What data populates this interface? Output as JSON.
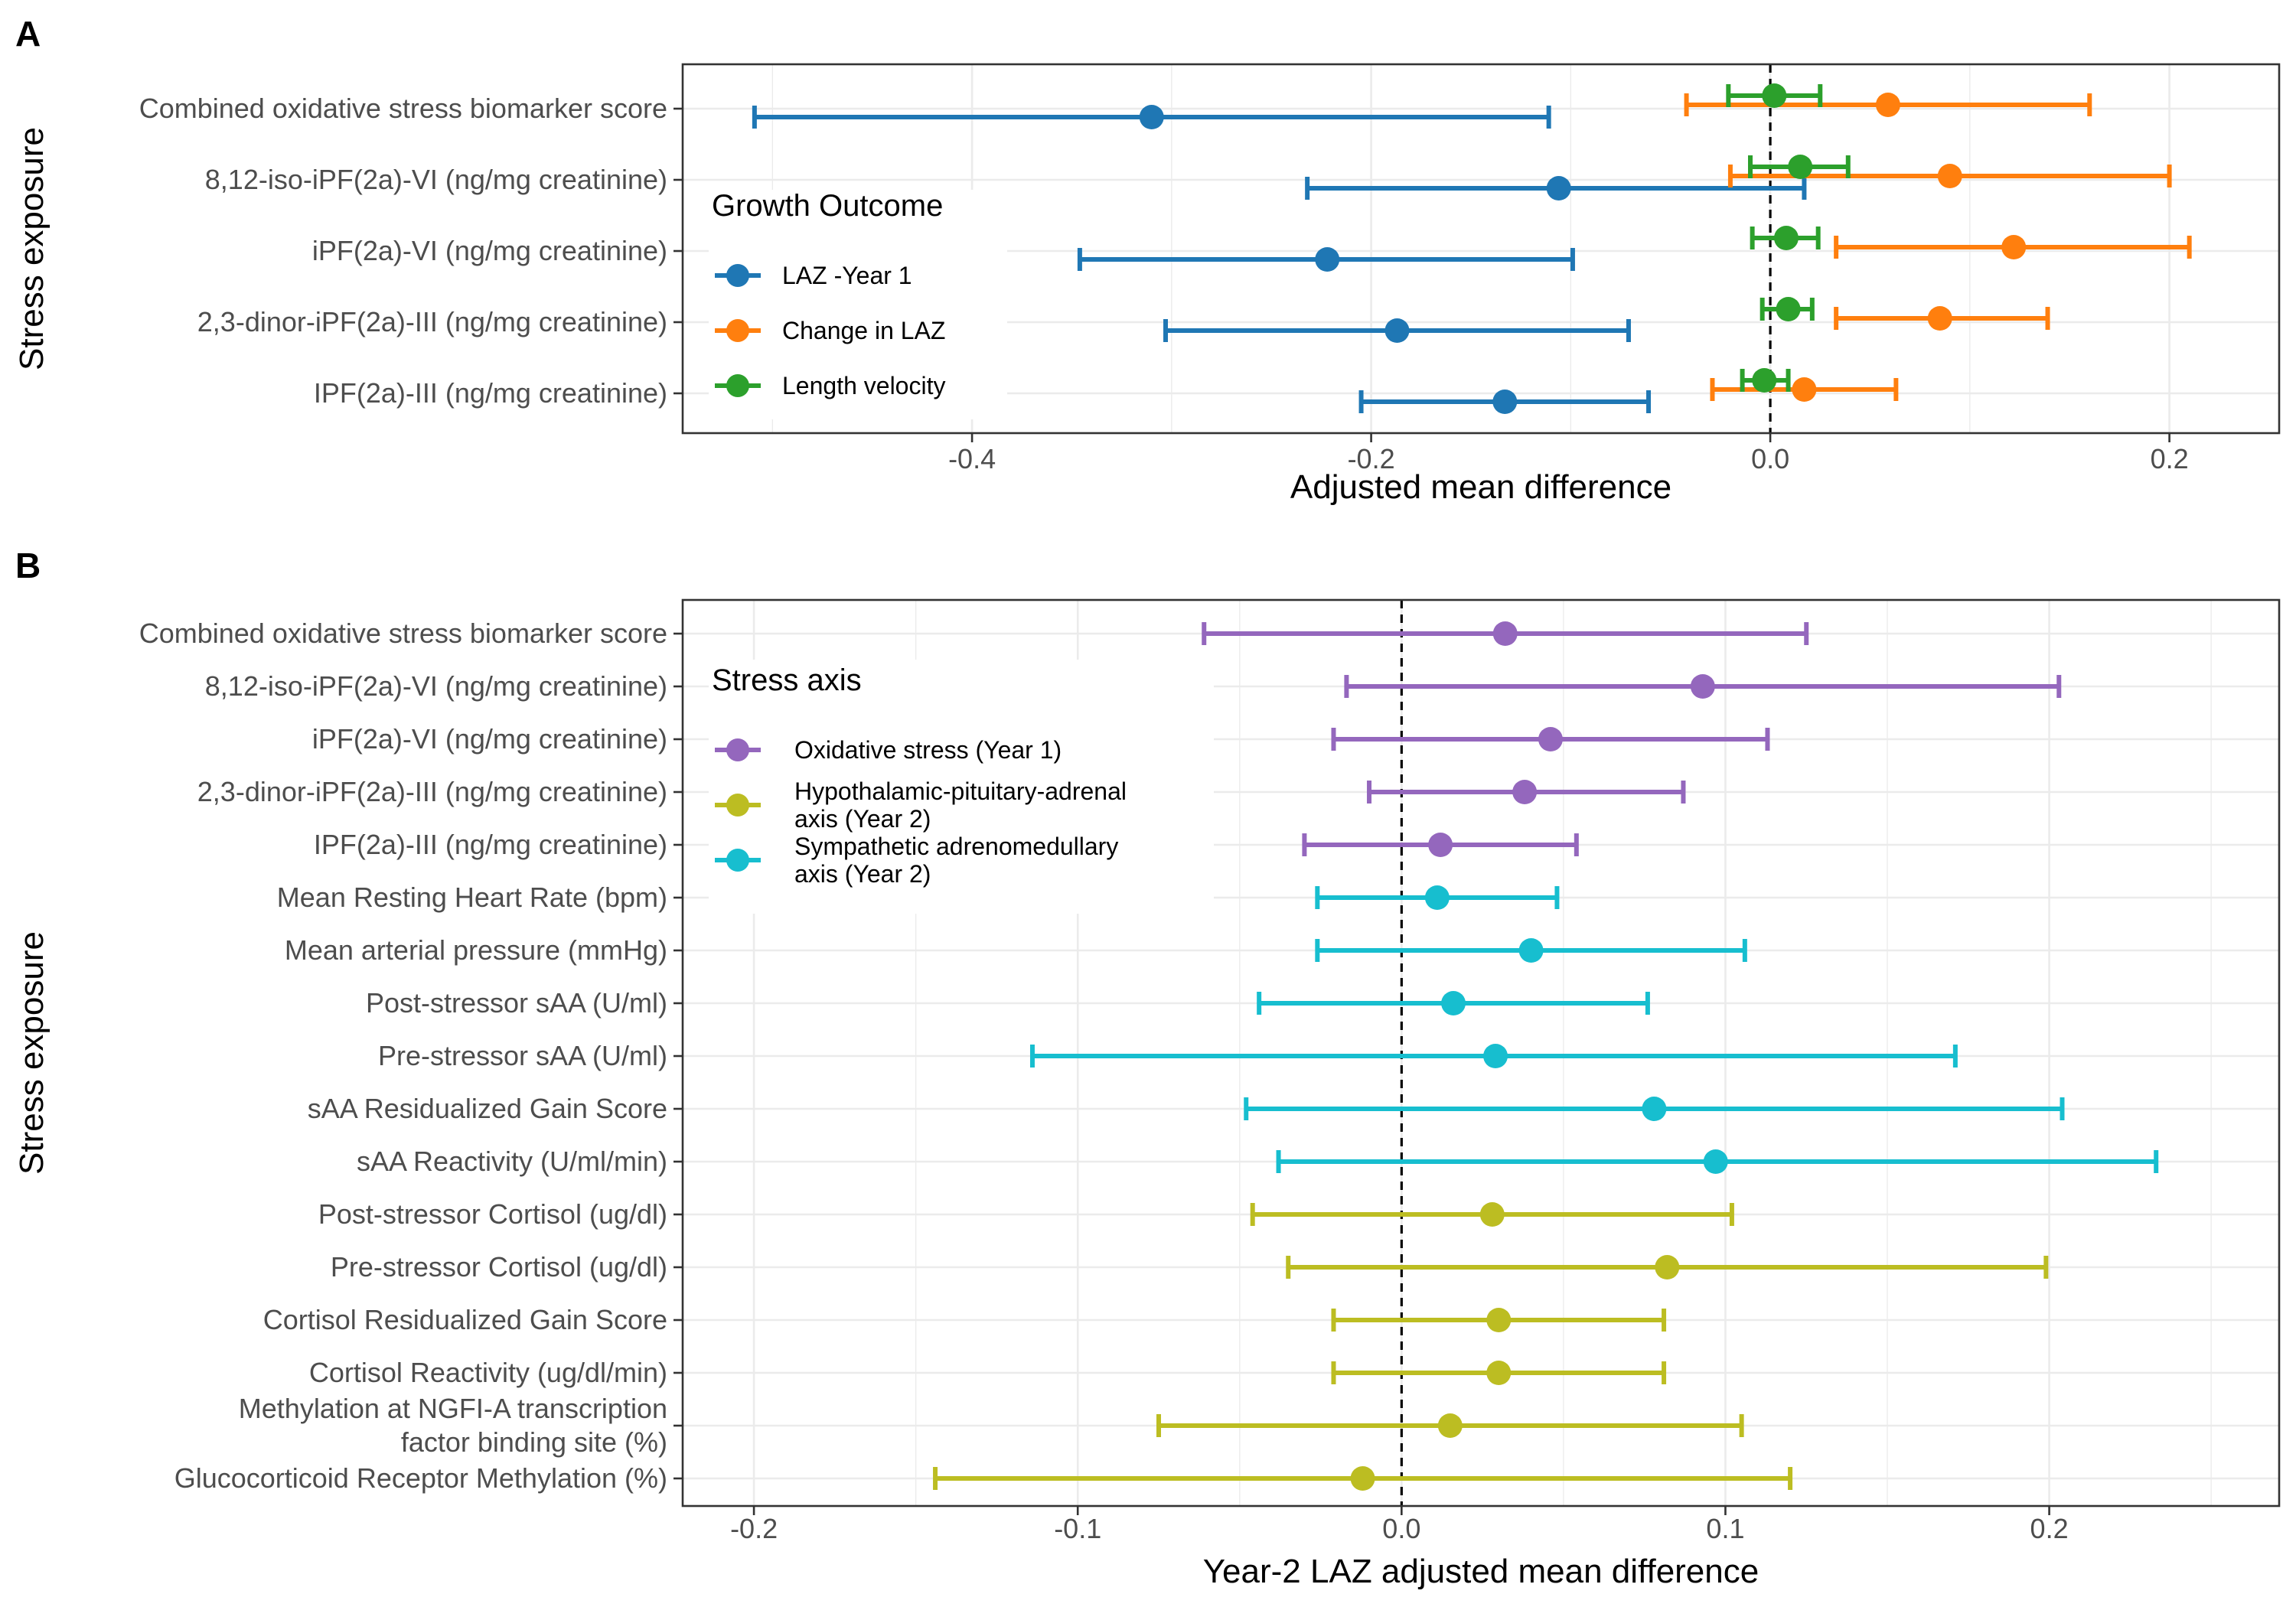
{
  "chart_data": [
    {
      "panel": "A",
      "type": "forest",
      "xlabel": "Adjusted mean difference",
      "ylabel": "Stress exposure",
      "xlim": [
        -0.545,
        0.255
      ],
      "xticks": [
        -0.4,
        -0.2,
        0.0,
        0.2
      ],
      "xtick_labels": [
        "-0.4",
        "-0.2",
        "0.0",
        "0.2"
      ],
      "grid": true,
      "reference_line": 0,
      "categories": [
        "Combined oxidative stress biomarker score",
        "8,12-iso-iPF(2a)-VI (ng/mg creatinine)",
        "iPF(2a)-VI (ng/mg creatinine)",
        "2,3-dinor-iPF(2a)-III (ng/mg creatinine)",
        "IPF(2a)-III (ng/mg creatinine)"
      ],
      "legend": {
        "title": "Growth Outcome",
        "position": "left-inside"
      },
      "series": [
        {
          "name": "LAZ -Year 1",
          "color": "#1f77b4",
          "estimate": [
            -0.31,
            -0.106,
            -0.222,
            -0.187,
            -0.133
          ],
          "lower": [
            -0.509,
            -0.232,
            -0.346,
            -0.303,
            -0.205
          ],
          "upper": [
            -0.111,
            0.017,
            -0.099,
            -0.071,
            -0.061
          ]
        },
        {
          "name": "Change in LAZ",
          "color": "#ff7f0e",
          "estimate": [
            0.059,
            0.09,
            0.122,
            0.085,
            0.017
          ],
          "lower": [
            -0.042,
            -0.02,
            0.033,
            0.033,
            -0.029
          ],
          "upper": [
            0.16,
            0.2,
            0.21,
            0.139,
            0.063
          ]
        },
        {
          "name": "Length velocity",
          "color": "#2ca02c",
          "estimate": [
            0.002,
            0.015,
            0.008,
            0.009,
            -0.003
          ],
          "lower": [
            -0.021,
            -0.01,
            -0.009,
            -0.004,
            -0.014
          ],
          "upper": [
            0.025,
            0.039,
            0.024,
            0.021,
            0.009
          ]
        }
      ]
    },
    {
      "panel": "B",
      "type": "forest",
      "xlabel": "Year-2 LAZ adjusted mean difference",
      "ylabel": "Stress exposure",
      "xlim": [
        -0.222,
        0.271
      ],
      "xticks": [
        -0.2,
        -0.1,
        0.0,
        0.1,
        0.2
      ],
      "xtick_labels": [
        "-0.2",
        "-0.1",
        "0.0",
        "0.1",
        "0.2"
      ],
      "grid": true,
      "reference_line": 0,
      "categories": [
        "Combined oxidative stress biomarker score",
        "8,12-iso-iPF(2a)-VI (ng/mg creatinine)",
        "iPF(2a)-VI (ng/mg creatinine)",
        "2,3-dinor-iPF(2a)-III (ng/mg creatinine)",
        "IPF(2a)-III (ng/mg creatinine)",
        "Mean Resting Heart Rate (bpm)",
        "Mean arterial pressure (mmHg)",
        "Post-stressor sAA (U/ml)",
        "Pre-stressor sAA (U/ml)",
        "sAA Residualized Gain Score",
        "sAA Reactivity (U/ml/min)",
        "Post-stressor Cortisol (ug/dl)",
        "Pre-stressor Cortisol (ug/dl)",
        "Cortisol Residualized Gain Score",
        "Cortisol Reactivity (ug/dl/min)",
        [
          "Methylation at NGFI-A transcription",
          "factor binding site (%)"
        ],
        "Glucocorticoid Receptor Methylation (%)"
      ],
      "legend": {
        "title": "Stress axis",
        "position": "left-inside"
      },
      "series": [
        {
          "name": "Oxidative stress (Year 1)",
          "color": "#9467bd",
          "rows": [
            0,
            1,
            2,
            3,
            4
          ],
          "estimate": [
            0.032,
            0.093,
            0.046,
            0.038,
            0.012
          ],
          "lower": [
            -0.061,
            -0.017,
            -0.021,
            -0.01,
            -0.03
          ],
          "upper": [
            0.125,
            0.203,
            0.113,
            0.087,
            0.054
          ]
        },
        {
          "name": [
            "Hypothalamic-pituitary-adrenal",
            "axis (Year 2)"
          ],
          "color": "#bcbd22",
          "rows": [
            11,
            12,
            13,
            14,
            15,
            16
          ],
          "estimate": [
            0.028,
            0.082,
            0.03,
            0.03,
            0.015,
            -0.012
          ],
          "lower": [
            -0.046,
            -0.035,
            -0.021,
            -0.021,
            -0.075,
            -0.144
          ],
          "upper": [
            0.102,
            0.199,
            0.081,
            0.081,
            0.105,
            0.12
          ]
        },
        {
          "name": [
            "Sympathetic adrenomedullary",
            "axis (Year 2)"
          ],
          "color": "#17becf",
          "rows": [
            5,
            6,
            7,
            8,
            9,
            10
          ],
          "estimate": [
            0.011,
            0.04,
            0.016,
            0.029,
            0.078,
            0.097
          ],
          "lower": [
            -0.026,
            -0.026,
            -0.044,
            -0.114,
            -0.048,
            -0.038
          ],
          "upper": [
            0.048,
            0.106,
            0.076,
            0.171,
            0.204,
            0.233
          ]
        }
      ],
      "legend_order": [
        0,
        1,
        2
      ]
    }
  ]
}
